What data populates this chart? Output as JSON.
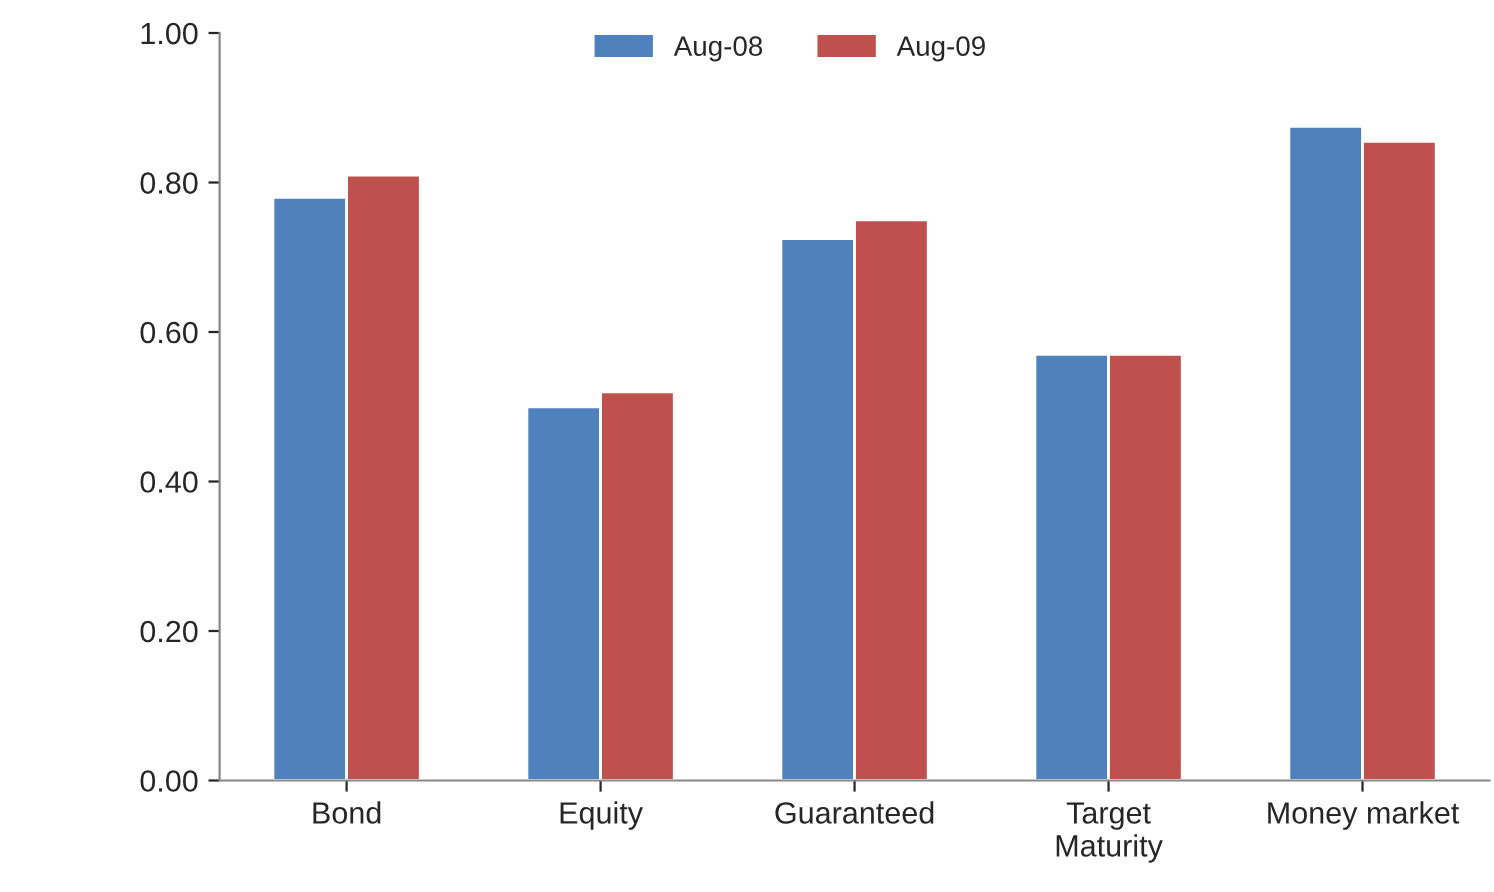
{
  "chart_data": {
    "type": "bar",
    "categories": [
      "Bond",
      "Equity",
      "Guaranteed",
      "Target\nMaturity",
      "Money market"
    ],
    "series": [
      {
        "name": "Aug-08",
        "color": "#4f81bd",
        "values": [
          0.78,
          0.5,
          0.725,
          0.57,
          0.875
        ]
      },
      {
        "name": "Aug-09",
        "color": "#c0504d",
        "values": [
          0.81,
          0.52,
          0.75,
          0.57,
          0.855
        ]
      }
    ],
    "ylim": [
      0,
      1
    ],
    "yticks": [
      {
        "value": 0,
        "label": "0.00"
      },
      {
        "value": 0.2,
        "label": "0.20"
      },
      {
        "value": 0.4,
        "label": "0.40"
      },
      {
        "value": 0.6,
        "label": "0.60"
      },
      {
        "value": 0.8,
        "label": "0.80"
      },
      {
        "value": 1,
        "label": "1.00"
      }
    ],
    "grid": false,
    "legend": "top"
  }
}
